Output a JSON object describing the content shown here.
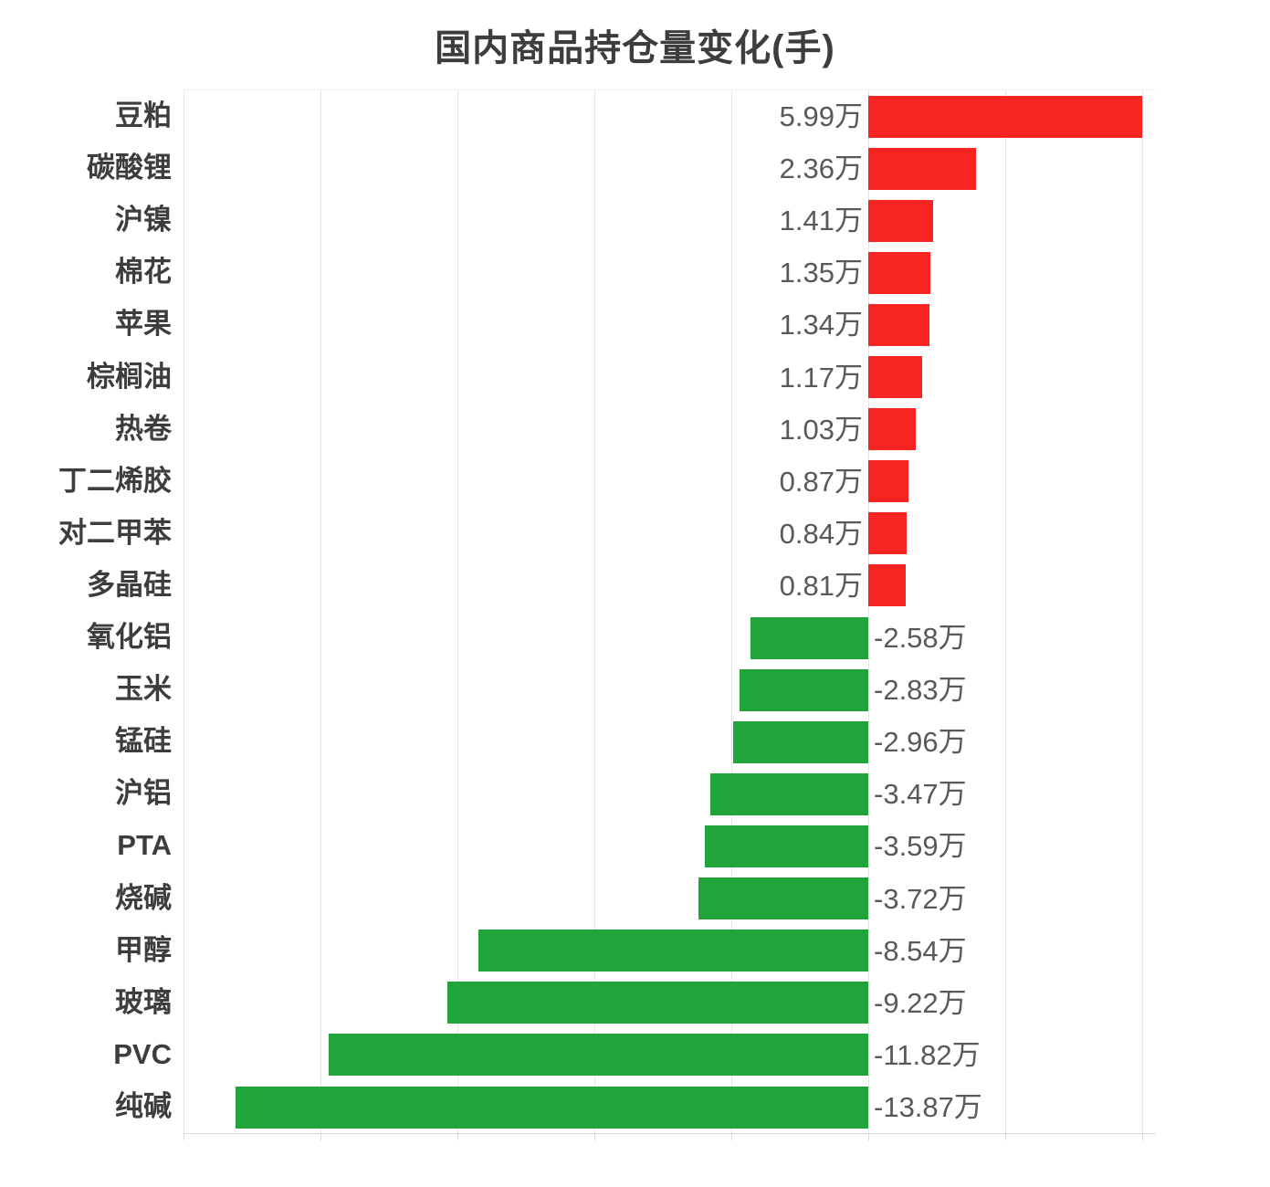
{
  "chart_data": {
    "type": "bar",
    "orientation": "horizontal",
    "title": "国内商品持仓量变化(手)",
    "unit": "万",
    "categories": [
      "豆粕",
      "碳酸锂",
      "沪镍",
      "棉花",
      "苹果",
      "棕榈油",
      "热卷",
      "丁二烯胶",
      "对二甲苯",
      "多晶硅",
      "氧化铝",
      "玉米",
      "锰硅",
      "沪铝",
      "PTA",
      "烧碱",
      "甲醇",
      "玻璃",
      "PVC",
      "纯碱"
    ],
    "values_wan": [
      5.99,
      2.36,
      1.41,
      1.35,
      1.34,
      1.17,
      1.03,
      0.87,
      0.84,
      0.81,
      -2.58,
      -2.83,
      -2.96,
      -3.47,
      -3.59,
      -3.72,
      -8.54,
      -9.22,
      -11.82,
      -13.87
    ],
    "value_labels": [
      "5.99万",
      "2.36万",
      "1.41万",
      "1.35万",
      "1.34万",
      "1.17万",
      "1.03万",
      "0.87万",
      "0.84万",
      "0.81万",
      "-2.58万",
      "-2.83万",
      "-2.96万",
      "-3.47万",
      "-3.59万",
      "-3.72万",
      "-8.54万",
      "-9.22万",
      "-11.82万",
      "-13.87万"
    ],
    "xlim_wan": [
      -15,
      6.3
    ],
    "gridline_step_wan": 3,
    "grid": true,
    "legend": null,
    "colors": {
      "positive_bar": "#f82422",
      "negative_bar": "#22a43c",
      "title_text": "#3d3d3d",
      "category_text": "#3d3d3d",
      "value_text": "#595959",
      "gridline": "#e6e6e6",
      "axis_line": "#d9d9d9"
    }
  }
}
